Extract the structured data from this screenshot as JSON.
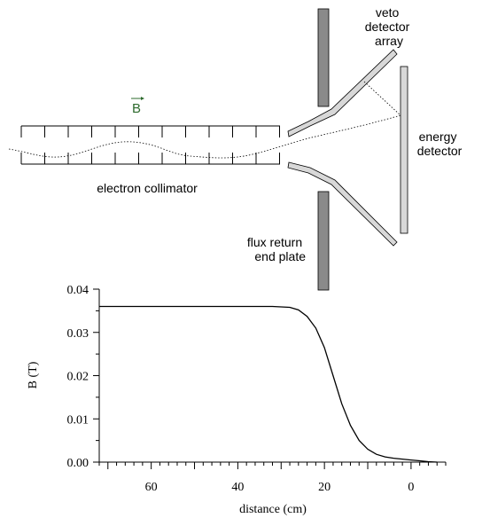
{
  "diagram": {
    "labels": {
      "veto": [
        "veto",
        "detector",
        "array"
      ],
      "energy": [
        "energy",
        "detector"
      ],
      "collimator": "electron collimator",
      "flux": [
        "flux return",
        "end plate"
      ],
      "field_symbol": "B"
    },
    "colors": {
      "field_symbol": "#2e6b2e",
      "end_plate": "#8a8a8a",
      "energy_detector": "#d8d8d8",
      "veto_plate": "#d8d8d8",
      "line": "#000000"
    }
  },
  "chart_data": {
    "type": "line",
    "xlabel": "distance (cm)",
    "ylabel": "B (T)",
    "xlim": [
      72,
      -8
    ],
    "ylim": [
      0,
      0.04
    ],
    "x_ticks": [
      60,
      40,
      20,
      0
    ],
    "x_tick_labels": [
      "60",
      "40",
      "20",
      "0"
    ],
    "y_ticks": [
      0,
      0.01,
      0.02,
      0.03,
      0.04
    ],
    "y_tick_labels": [
      "0.00",
      "0.01",
      "0.02",
      "0.03",
      "0.04"
    ],
    "x_axis_reversed": true,
    "grid": false,
    "series": [
      {
        "x": [
          72,
          60,
          50,
          40,
          32,
          28,
          26,
          24,
          22,
          20,
          18,
          16,
          14,
          12,
          10,
          8,
          6,
          4,
          2,
          0,
          -2,
          -4,
          -6
        ],
        "y": [
          0.036,
          0.036,
          0.036,
          0.036,
          0.036,
          0.0358,
          0.0352,
          0.0337,
          0.031,
          0.0265,
          0.02,
          0.0135,
          0.0085,
          0.005,
          0.003,
          0.0018,
          0.0012,
          0.0009,
          0.0007,
          0.0005,
          0.0003,
          0.0001,
          0.0
        ]
      }
    ]
  }
}
